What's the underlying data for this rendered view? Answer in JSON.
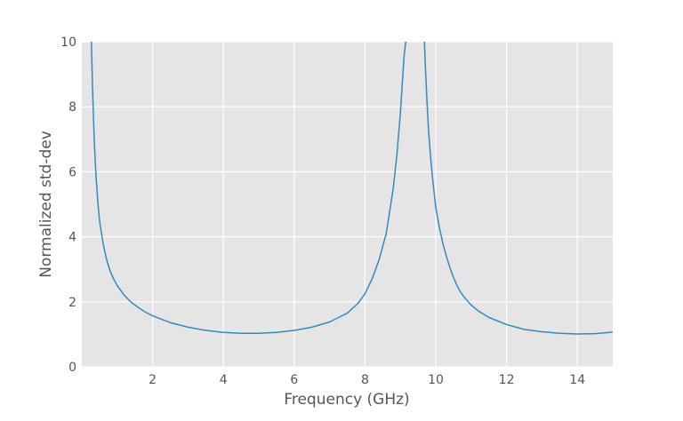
{
  "chart_data": {
    "type": "line",
    "title": "",
    "xlabel": "Frequency (GHz)",
    "ylabel": "Normalized std-dev",
    "xlim": [
      0.0,
      15.0
    ],
    "ylim": [
      0,
      10
    ],
    "xticks": [
      2,
      4,
      6,
      8,
      10,
      12,
      14
    ],
    "yticks": [
      0,
      2,
      4,
      6,
      8,
      10
    ],
    "grid": true,
    "legend": "none",
    "colors": {
      "background": "#e5e5e5",
      "grid": "#ffffff",
      "line": "#348abd",
      "text": "#555555"
    },
    "series": [
      {
        "color": "#348abd",
        "segments": [
          {
            "x": [
              0.27,
              0.3,
              0.35,
              0.4,
              0.45,
              0.5,
              0.6,
              0.7,
              0.8,
              0.9,
              1.0,
              1.2,
              1.4,
              1.6,
              1.8,
              2.0,
              2.5,
              3.0,
              3.5,
              4.0,
              4.5,
              5.0,
              5.5,
              6.0,
              6.5,
              7.0,
              7.5,
              7.8,
              8.0,
              8.2,
              8.4,
              8.6,
              8.8,
              8.9,
              9.0,
              9.1,
              9.15,
              9.18
            ],
            "y": [
              10.0,
              8.7,
              7.0,
              5.9,
              5.1,
              4.5,
              3.8,
              3.3,
              2.95,
              2.7,
              2.5,
              2.2,
              1.98,
              1.82,
              1.68,
              1.57,
              1.36,
              1.22,
              1.12,
              1.06,
              1.03,
              1.03,
              1.06,
              1.12,
              1.22,
              1.38,
              1.65,
              1.95,
              2.25,
              2.7,
              3.3,
              4.1,
              5.5,
              6.5,
              7.8,
              9.5,
              10.0,
              10.0
            ]
          },
          {
            "x": [
              9.68,
              9.7,
              9.75,
              9.8,
              9.85,
              9.9,
              9.95,
              10.0,
              10.1,
              10.2,
              10.3,
              10.4,
              10.5,
              10.6,
              10.7,
              10.8,
              11.0,
              11.2,
              11.5,
              12.0,
              12.5,
              13.0,
              13.5,
              14.0,
              14.5,
              14.8,
              15.0
            ],
            "y": [
              10.0,
              9.4,
              8.2,
              7.2,
              6.5,
              5.9,
              5.4,
              4.9,
              4.3,
              3.8,
              3.4,
              3.05,
              2.75,
              2.5,
              2.3,
              2.15,
              1.9,
              1.72,
              1.52,
              1.3,
              1.15,
              1.08,
              1.03,
              1.01,
              1.02,
              1.05,
              1.07
            ]
          }
        ]
      }
    ]
  }
}
